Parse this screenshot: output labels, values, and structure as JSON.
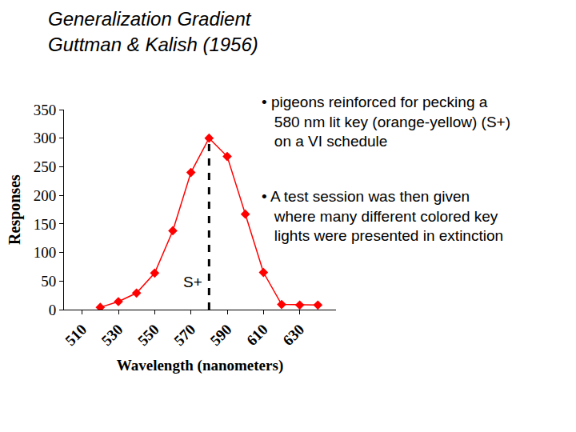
{
  "chart_data": {
    "type": "line",
    "title": "Generalization Gradient\nGuttman & Kalish (1956)",
    "x_label": "Wavelength (nanometers)",
    "y_label": "Responses",
    "x": [
      520,
      530,
      540,
      550,
      560,
      570,
      580,
      590,
      600,
      610,
      620,
      630,
      640
    ],
    "values": [
      4,
      14,
      29,
      64,
      138,
      240,
      300,
      268,
      167,
      65,
      9,
      8,
      8
    ],
    "color": "#ff0000",
    "marker": "diamond",
    "line_style": "solid",
    "xlim": [
      500,
      650
    ],
    "xticks": [
      510,
      530,
      550,
      570,
      590,
      610,
      630
    ],
    "ylim": [
      0,
      350
    ],
    "yticks": [
      0,
      50,
      100,
      150,
      200,
      250,
      300,
      350
    ],
    "grid": false,
    "vline": {
      "x": 580,
      "label": "S+",
      "line_style": "dashed"
    },
    "annotations": [
      "• pigeons reinforced for pecking a\n580 nm lit key (orange-yellow) (S+)\non a VI schedule",
      "• A test session was then given\nwhere many different colored key\nlights were presented in extinction"
    ]
  }
}
